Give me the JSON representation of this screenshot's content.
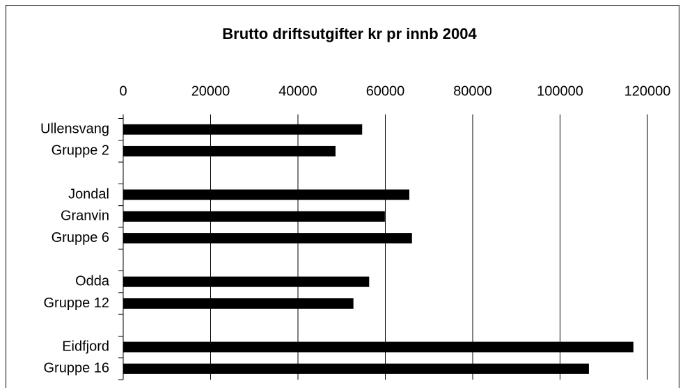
{
  "chart_data": {
    "type": "bar",
    "orientation": "horizontal",
    "title": "Brutto driftsutgifter kr pr innb 2004",
    "categories": [
      "Ullensvang",
      "Gruppe 2",
      null,
      "Jondal",
      "Granvin",
      "Gruppe 6",
      null,
      "Odda",
      "Gruppe 12",
      null,
      "Eidfjord",
      "Gruppe 16"
    ],
    "values": [
      54700,
      48600,
      null,
      65500,
      59900,
      66100,
      null,
      56300,
      52700,
      null,
      116800,
      106600
    ],
    "color": "#000000",
    "xlim": [
      0,
      120000
    ],
    "xticks": [
      0,
      20000,
      40000,
      60000,
      80000,
      100000,
      120000
    ],
    "grid": true
  }
}
